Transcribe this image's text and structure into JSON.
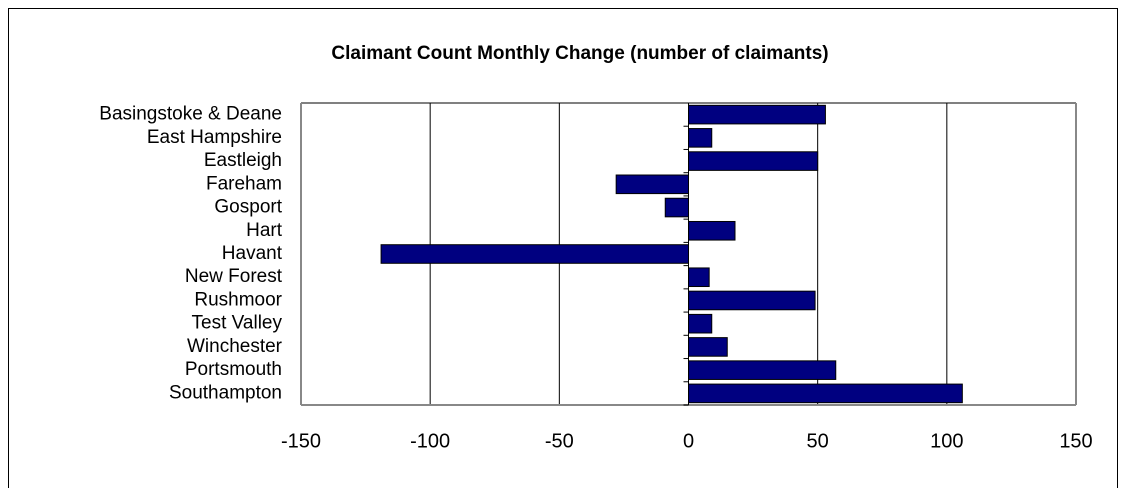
{
  "chart_data": {
    "type": "bar",
    "orientation": "horizontal",
    "title": "Claimant Count Monthly Change (number of claimants)",
    "categories": [
      "Basingstoke & Deane",
      "East Hampshire",
      "Eastleigh",
      "Fareham",
      "Gosport",
      "Hart",
      "Havant",
      "New Forest",
      "Rushmoor",
      "Test Valley",
      "Winchester",
      "Portsmouth",
      "Southampton"
    ],
    "values": [
      53,
      9,
      50,
      -28,
      -9,
      18,
      -119,
      8,
      49,
      9,
      15,
      57,
      106
    ],
    "color": "#000080",
    "xlim": [
      -150,
      150
    ],
    "xticks": [
      -150,
      -100,
      -50,
      0,
      50,
      100,
      150
    ],
    "grid": true
  }
}
